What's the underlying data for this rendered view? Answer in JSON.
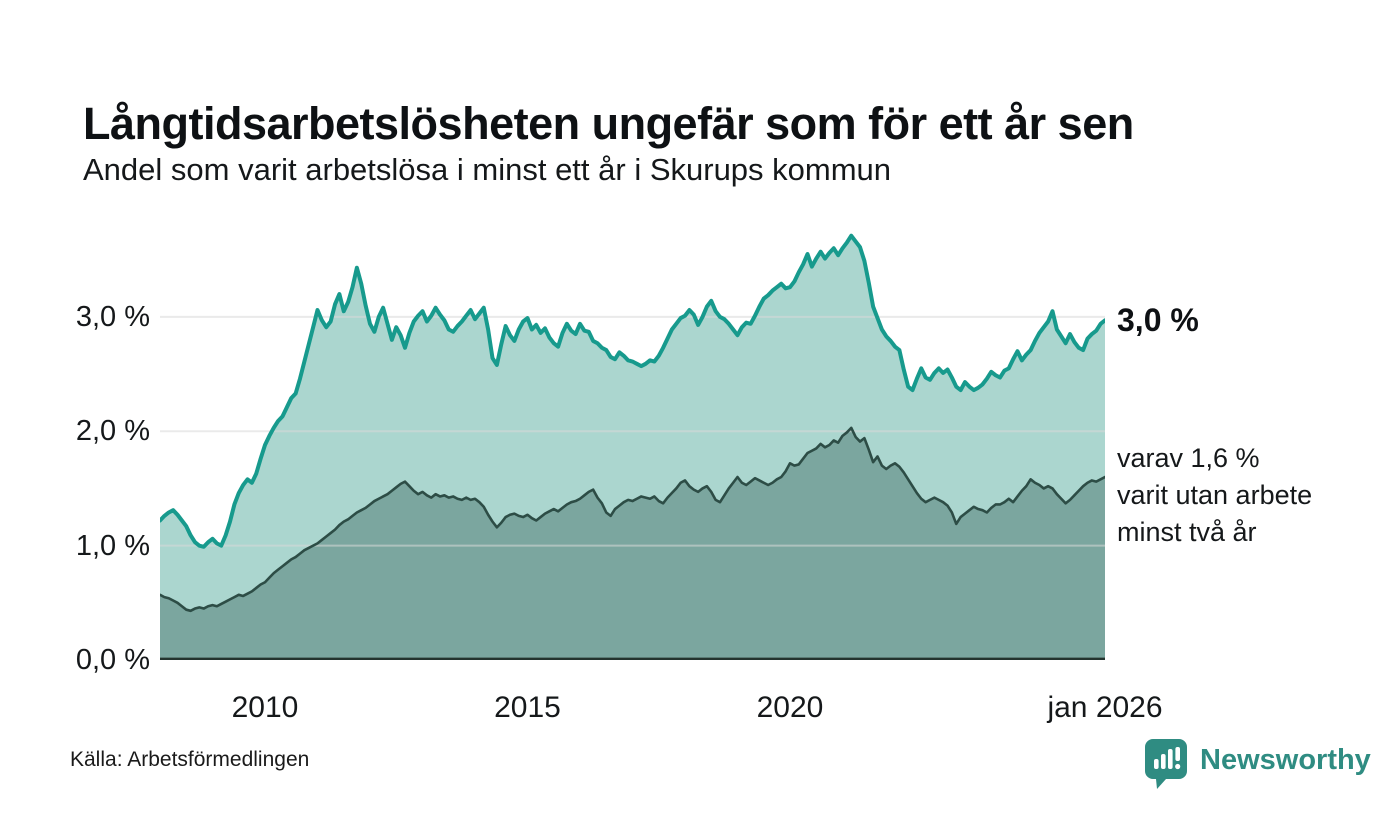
{
  "title": "Långtidsarbetslösheten ungefär som för ett år sen",
  "subtitle": "Andel som varit arbetslösa i minst ett år i Skurups kommun",
  "source": "Källa: Arbetsförmedlingen",
  "brand": {
    "name": "Newsworthy",
    "color": "#2f8c82"
  },
  "labels": {
    "end_total": "3,0 %",
    "annotation_line1": "varav 1,6 %",
    "annotation_line2": "varit utan arbete",
    "annotation_line3": "minst två år"
  },
  "colors": {
    "total_line": "#179a8d",
    "total_fill": "#abd6cf",
    "two_year_line": "#2d4d46",
    "two_year_fill": "#7ba69f",
    "gridline": "#d9d9d9",
    "baseline": "#24332e",
    "background": "#ffffff"
  },
  "y_axis": {
    "ticks": [
      {
        "label": "3,0 %",
        "value": 3
      },
      {
        "label": "2,0 %",
        "value": 2
      },
      {
        "label": "1,0 %",
        "value": 1
      },
      {
        "label": "0,0 %",
        "value": 0
      }
    ]
  },
  "x_axis": {
    "ticks": [
      {
        "label": "2010",
        "index": 24
      },
      {
        "label": "2015",
        "index": 84
      },
      {
        "label": "2020",
        "index": 144
      },
      {
        "label": "jan 2026",
        "index": 216
      }
    ]
  },
  "chart_data": {
    "type": "area",
    "x_start": "2008-01",
    "x_end": "2026-01",
    "x_step": "monthly",
    "ylim": [
      0,
      3.76
    ],
    "gridlines": [
      1,
      2,
      3
    ],
    "legend_position": "right-edge-labels",
    "grid": true,
    "series": [
      {
        "name": "Andel arbetslösa minst ett år (totalt)",
        "end_value_label": "3,0 %",
        "values": [
          1.22,
          1.26,
          1.29,
          1.31,
          1.27,
          1.22,
          1.17,
          1.09,
          1.03,
          1.0,
          0.99,
          1.03,
          1.06,
          1.02,
          1.0,
          1.09,
          1.21,
          1.36,
          1.46,
          1.53,
          1.58,
          1.55,
          1.63,
          1.76,
          1.88,
          1.96,
          2.03,
          2.09,
          2.13,
          2.21,
          2.29,
          2.33,
          2.46,
          2.61,
          2.76,
          2.91,
          3.06,
          2.97,
          2.91,
          2.96,
          3.11,
          3.2,
          3.05,
          3.13,
          3.26,
          3.43,
          3.29,
          3.1,
          2.94,
          2.87,
          3.0,
          3.08,
          2.94,
          2.8,
          2.91,
          2.84,
          2.73,
          2.86,
          2.96,
          3.01,
          3.05,
          2.96,
          3.01,
          3.08,
          3.02,
          2.97,
          2.89,
          2.87,
          2.92,
          2.96,
          3.01,
          3.06,
          2.98,
          3.03,
          3.08,
          2.89,
          2.64,
          2.58,
          2.76,
          2.92,
          2.84,
          2.79,
          2.89,
          2.96,
          2.99,
          2.89,
          2.93,
          2.86,
          2.9,
          2.82,
          2.77,
          2.74,
          2.86,
          2.94,
          2.88,
          2.85,
          2.94,
          2.88,
          2.87,
          2.79,
          2.77,
          2.73,
          2.71,
          2.65,
          2.63,
          2.69,
          2.66,
          2.62,
          2.61,
          2.59,
          2.57,
          2.59,
          2.62,
          2.61,
          2.66,
          2.73,
          2.81,
          2.89,
          2.94,
          2.99,
          3.01,
          3.06,
          3.02,
          2.93,
          3.0,
          3.09,
          3.14,
          3.05,
          3.0,
          2.98,
          2.94,
          2.89,
          2.84,
          2.91,
          2.95,
          2.94,
          3.01,
          3.09,
          3.16,
          3.19,
          3.23,
          3.26,
          3.29,
          3.25,
          3.26,
          3.31,
          3.39,
          3.46,
          3.55,
          3.44,
          3.51,
          3.57,
          3.51,
          3.56,
          3.6,
          3.54,
          3.6,
          3.65,
          3.71,
          3.66,
          3.61,
          3.49,
          3.3,
          3.09,
          2.99,
          2.89,
          2.83,
          2.79,
          2.74,
          2.71,
          2.54,
          2.39,
          2.36,
          2.46,
          2.55,
          2.47,
          2.45,
          2.51,
          2.55,
          2.51,
          2.54,
          2.47,
          2.39,
          2.36,
          2.43,
          2.39,
          2.36,
          2.38,
          2.41,
          2.46,
          2.52,
          2.49,
          2.47,
          2.53,
          2.55,
          2.63,
          2.7,
          2.62,
          2.67,
          2.71,
          2.79,
          2.86,
          2.91,
          2.96,
          3.05,
          2.89,
          2.83,
          2.77,
          2.85,
          2.78,
          2.73,
          2.71,
          2.81,
          2.85,
          2.88,
          2.94,
          2.97
        ]
      },
      {
        "name": "varav utan arbete minst två år",
        "end_value_label": "1,6 %",
        "values": [
          0.57,
          0.55,
          0.54,
          0.52,
          0.5,
          0.47,
          0.44,
          0.43,
          0.45,
          0.46,
          0.45,
          0.47,
          0.48,
          0.47,
          0.49,
          0.51,
          0.53,
          0.55,
          0.57,
          0.56,
          0.58,
          0.6,
          0.63,
          0.66,
          0.68,
          0.72,
          0.76,
          0.79,
          0.82,
          0.85,
          0.88,
          0.9,
          0.93,
          0.96,
          0.98,
          1.0,
          1.02,
          1.05,
          1.08,
          1.11,
          1.14,
          1.18,
          1.21,
          1.23,
          1.26,
          1.29,
          1.31,
          1.33,
          1.36,
          1.39,
          1.41,
          1.43,
          1.45,
          1.48,
          1.51,
          1.54,
          1.56,
          1.52,
          1.48,
          1.45,
          1.47,
          1.44,
          1.42,
          1.45,
          1.43,
          1.44,
          1.42,
          1.43,
          1.41,
          1.4,
          1.42,
          1.4,
          1.41,
          1.38,
          1.34,
          1.27,
          1.21,
          1.16,
          1.2,
          1.25,
          1.27,
          1.28,
          1.26,
          1.25,
          1.27,
          1.24,
          1.22,
          1.25,
          1.28,
          1.3,
          1.32,
          1.3,
          1.33,
          1.36,
          1.38,
          1.39,
          1.41,
          1.44,
          1.47,
          1.49,
          1.42,
          1.37,
          1.29,
          1.26,
          1.32,
          1.35,
          1.38,
          1.4,
          1.39,
          1.41,
          1.43,
          1.42,
          1.41,
          1.43,
          1.39,
          1.37,
          1.42,
          1.46,
          1.5,
          1.55,
          1.57,
          1.52,
          1.49,
          1.47,
          1.5,
          1.52,
          1.47,
          1.4,
          1.38,
          1.44,
          1.5,
          1.55,
          1.6,
          1.55,
          1.53,
          1.56,
          1.59,
          1.57,
          1.55,
          1.53,
          1.55,
          1.58,
          1.6,
          1.65,
          1.72,
          1.7,
          1.71,
          1.76,
          1.81,
          1.83,
          1.85,
          1.89,
          1.86,
          1.88,
          1.92,
          1.9,
          1.96,
          1.99,
          2.03,
          1.95,
          1.91,
          1.94,
          1.84,
          1.73,
          1.78,
          1.7,
          1.67,
          1.7,
          1.72,
          1.69,
          1.64,
          1.58,
          1.52,
          1.46,
          1.41,
          1.38,
          1.4,
          1.42,
          1.4,
          1.38,
          1.35,
          1.29,
          1.19,
          1.25,
          1.28,
          1.31,
          1.34,
          1.32,
          1.31,
          1.29,
          1.33,
          1.36,
          1.36,
          1.38,
          1.41,
          1.38,
          1.43,
          1.48,
          1.52,
          1.58,
          1.55,
          1.53,
          1.5,
          1.52,
          1.5,
          1.45,
          1.41,
          1.37,
          1.4,
          1.44,
          1.48,
          1.52,
          1.55,
          1.57,
          1.56,
          1.58,
          1.6
        ]
      }
    ]
  }
}
